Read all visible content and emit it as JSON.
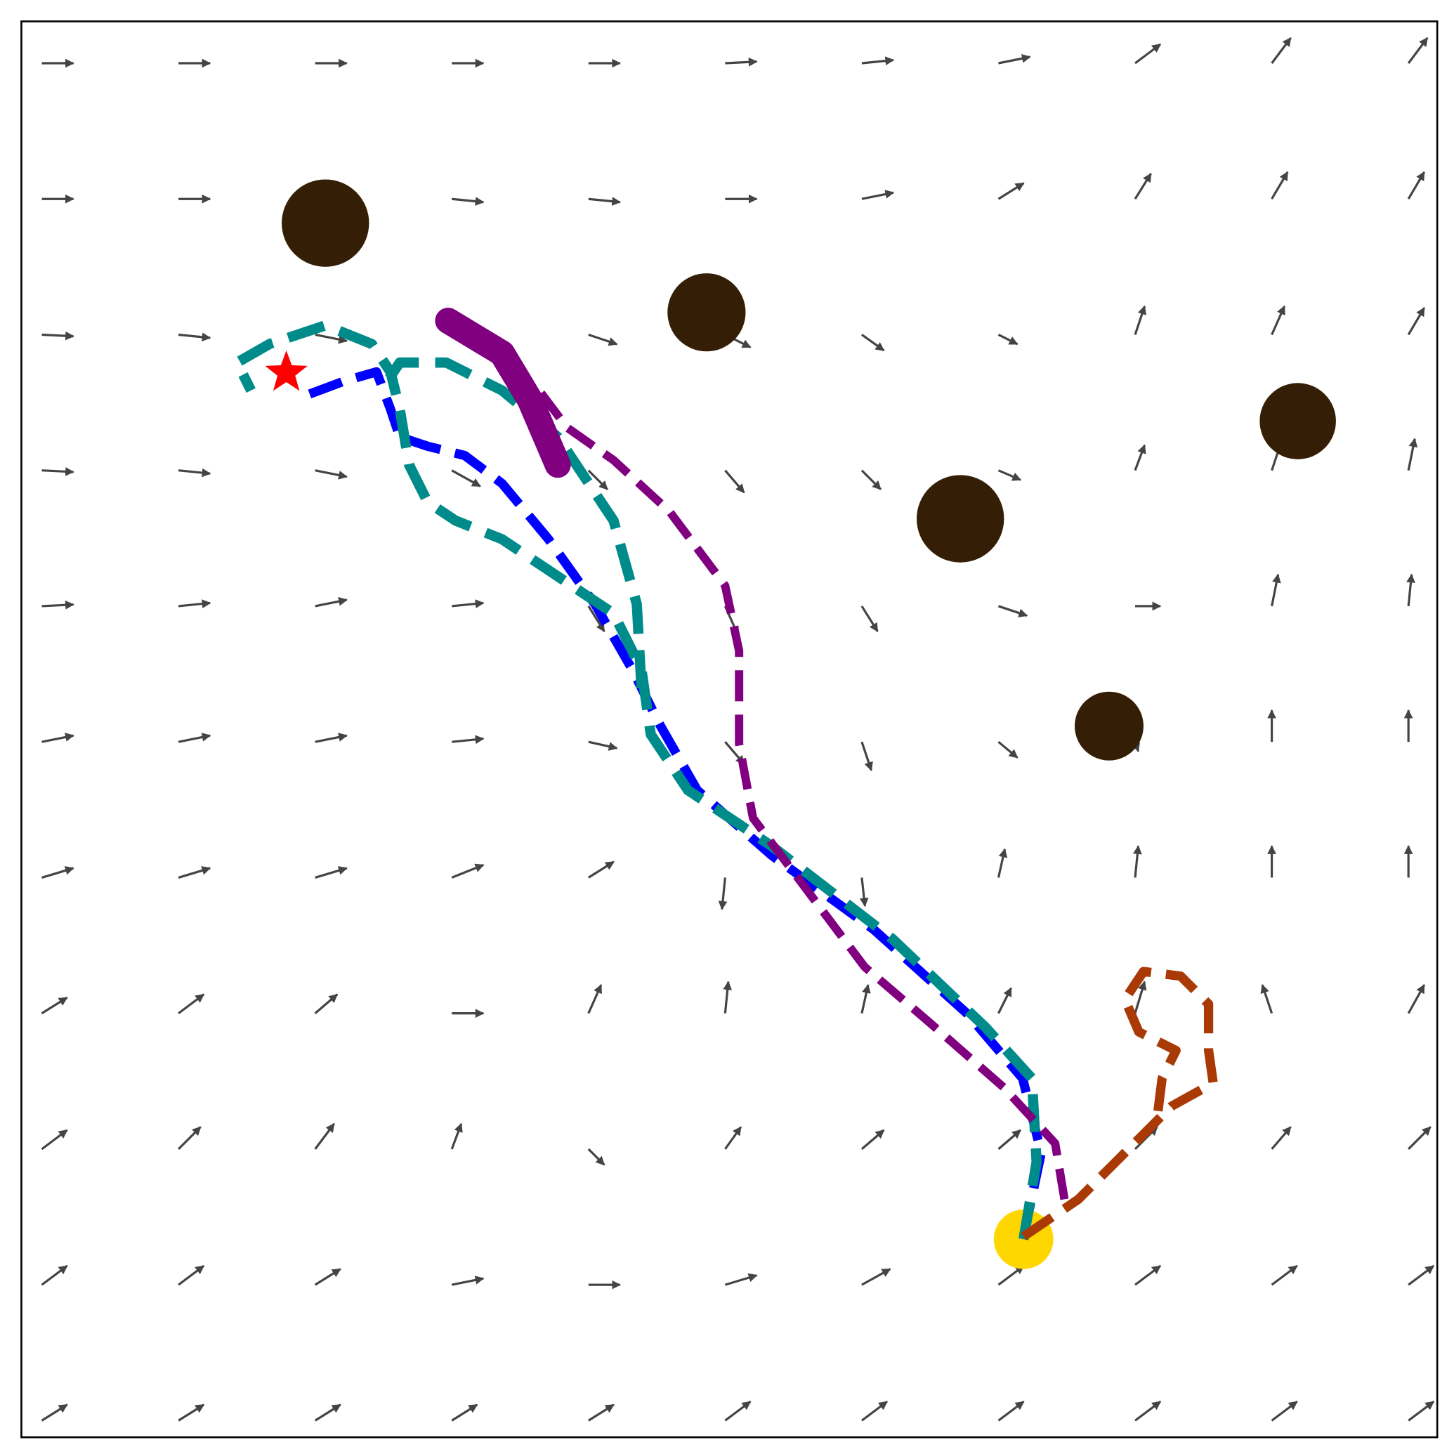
{
  "chart_data": {
    "type": "quiver",
    "xlim": [
      23,
      1546
    ],
    "ylim": [
      1546,
      23
    ],
    "field": {
      "color": "#444444",
      "x": [
        45,
        192,
        339,
        486,
        633,
        780,
        927,
        1074,
        1221,
        1368,
        1515
      ],
      "y": [
        68,
        214,
        360,
        506,
        652,
        798,
        944,
        1090,
        1236,
        1382,
        1528
      ],
      "u": [
        [
          1,
          1,
          1,
          1,
          1,
          1,
          1,
          1,
          0.8,
          0.6,
          0.6
        ],
        [
          1,
          1,
          1,
          1,
          1,
          1,
          1,
          0.8,
          0.5,
          0.5,
          0.5
        ],
        [
          1,
          1,
          1,
          0.9,
          0.9,
          0.8,
          0.7,
          0.6,
          0.3,
          0.4,
          0.5
        ],
        [
          1,
          1,
          1,
          0.9,
          0.6,
          0.6,
          0.6,
          0.7,
          0.3,
          0.3,
          0.2
        ],
        [
          1,
          1,
          1,
          1,
          0.5,
          0.4,
          0.5,
          0.9,
          0.8,
          0.2,
          0.1
        ],
        [
          1,
          1,
          1,
          1,
          0.9,
          0.6,
          0.3,
          0.6,
          0.1,
          0,
          0
        ],
        [
          1,
          1,
          1,
          1,
          0.8,
          -0.1,
          0.1,
          0.2,
          0.1,
          0,
          0
        ],
        [
          0.8,
          0.8,
          0.7,
          1,
          0.4,
          0.1,
          0.2,
          0.4,
          0.3,
          -0.3,
          0.5
        ],
        [
          0.8,
          0.7,
          0.6,
          0.3,
          0.5,
          0.5,
          0.7,
          0.7,
          0.7,
          0.6,
          0.7
        ],
        [
          0.8,
          0.8,
          0.8,
          1,
          1,
          1,
          0.9,
          0.8,
          0.8,
          0.8,
          0.8
        ],
        [
          0.8,
          0.8,
          0.8,
          0.8,
          0.8,
          0.8,
          0.8,
          0.8,
          0.8,
          0.8,
          0.8
        ]
      ],
      "v": [
        [
          0,
          0,
          0,
          0,
          0,
          -0.05,
          -0.1,
          -0.2,
          -0.6,
          -0.8,
          -0.8
        ],
        [
          0,
          0,
          0,
          0.1,
          0.1,
          0,
          -0.2,
          -0.5,
          -0.8,
          -0.85,
          -0.85
        ],
        [
          0.05,
          0.1,
          0.2,
          0.4,
          0.3,
          0.4,
          0.5,
          0.3,
          -0.9,
          -0.9,
          -0.85
        ],
        [
          0.05,
          0.1,
          0.2,
          0.5,
          0.6,
          0.7,
          0.6,
          0.3,
          -0.8,
          -0.9,
          -1
        ],
        [
          -0.05,
          -0.1,
          -0.2,
          -0.1,
          0.8,
          0.9,
          0.8,
          0.3,
          0,
          -1,
          -1
        ],
        [
          -0.2,
          -0.2,
          -0.2,
          -0.1,
          0.2,
          0.7,
          0.9,
          0.5,
          0.3,
          -1,
          -1
        ],
        [
          -0.3,
          -0.3,
          -0.3,
          -0.4,
          -0.5,
          1,
          0.9,
          -0.9,
          -1,
          -1,
          -1
        ],
        [
          -0.5,
          -0.6,
          -0.6,
          0,
          -0.9,
          -1,
          -0.9,
          -0.8,
          -1,
          -0.9,
          -0.9
        ],
        [
          -0.6,
          -0.7,
          -0.8,
          -0.8,
          0.5,
          -0.7,
          -0.6,
          -0.6,
          -0.7,
          -0.7,
          -0.7
        ],
        [
          -0.6,
          -0.6,
          -0.5,
          -0.2,
          0,
          -0.3,
          -0.5,
          -0.6,
          -0.6,
          -0.6,
          -0.6
        ],
        [
          -0.5,
          -0.5,
          -0.5,
          -0.5,
          -0.5,
          -0.6,
          -0.6,
          -0.6,
          -0.6,
          -0.6,
          -0.6
        ]
      ]
    },
    "obstacles": {
      "color": "#341f06",
      "x": [
        350,
        760,
        1033,
        1396,
        1193
      ],
      "y": [
        240,
        336,
        558,
        453,
        781
      ],
      "r": [
        47,
        42,
        47,
        41,
        37
      ]
    },
    "goal": {
      "x": 1101,
      "y": 1333,
      "r": 32,
      "color": "#ffd700"
    },
    "start": {
      "x": 308,
      "y": 401,
      "color": "#ff0000"
    },
    "series": [
      {
        "color": "#0000ff",
        "width": 10,
        "dashed": true,
        "x": [
          1101,
          1120,
          1100,
          1040,
          940,
          830,
          750,
          710,
          680,
          640,
          590,
          540,
          500,
          460,
          430,
          420,
          405,
          370,
          330
        ],
        "y": [
          1330,
          1240,
          1160,
          1090,
          1000,
          920,
          850,
          780,
          720,
          650,
          580,
          520,
          490,
          480,
          470,
          440,
          400,
          410,
          425
        ]
      },
      {
        "color": "#008b8b",
        "width": 11,
        "dashed": true,
        "x": [
          1101,
          1115,
          1110,
          1060,
          960,
          830,
          740,
          700,
          690,
          660,
          600,
          540,
          490,
          460,
          440,
          430,
          420,
          400,
          350,
          290,
          255,
          270
        ],
        "y": [
          1333,
          1250,
          1160,
          1105,
          1010,
          910,
          850,
          790,
          720,
          660,
          620,
          580,
          560,
          540,
          500,
          440,
          400,
          370,
          350,
          370,
          390,
          420
        ]
      },
      {
        "color": "#008b8b",
        "width": 11,
        "dashed": true,
        "x": [
          690,
          685,
          660,
          600,
          540,
          480,
          430,
          410
        ],
        "y": [
          740,
          650,
          560,
          470,
          420,
          390,
          390,
          420
        ]
      },
      {
        "color": "#800080",
        "width": 9,
        "dashed": true,
        "x": [
          1145,
          1135,
          1080,
          1000,
          930,
          870,
          810,
          795,
          795,
          780,
          720,
          660,
          610,
          580,
          540,
          500,
          480
        ],
        "y": [
          1290,
          1230,
          1170,
          1100,
          1040,
          960,
          880,
          800,
          700,
          630,
          550,
          495,
          460,
          420,
          390,
          360,
          345
        ]
      },
      {
        "color": "#800080",
        "width": 28,
        "dashed": false,
        "x": [
          482,
          540,
          570,
          600
        ],
        "y": [
          345,
          380,
          430,
          500
        ]
      },
      {
        "color": "#a93a06",
        "width": 10,
        "dashed": true,
        "x": [
          1101,
          1160,
          1220,
          1260,
          1305,
          1300,
          1300,
          1270,
          1230,
          1210,
          1225,
          1265,
          1250,
          1245
        ],
        "y": [
          1330,
          1290,
          1230,
          1190,
          1165,
          1130,
          1080,
          1050,
          1045,
          1075,
          1110,
          1130,
          1160,
          1200
        ]
      }
    ]
  }
}
